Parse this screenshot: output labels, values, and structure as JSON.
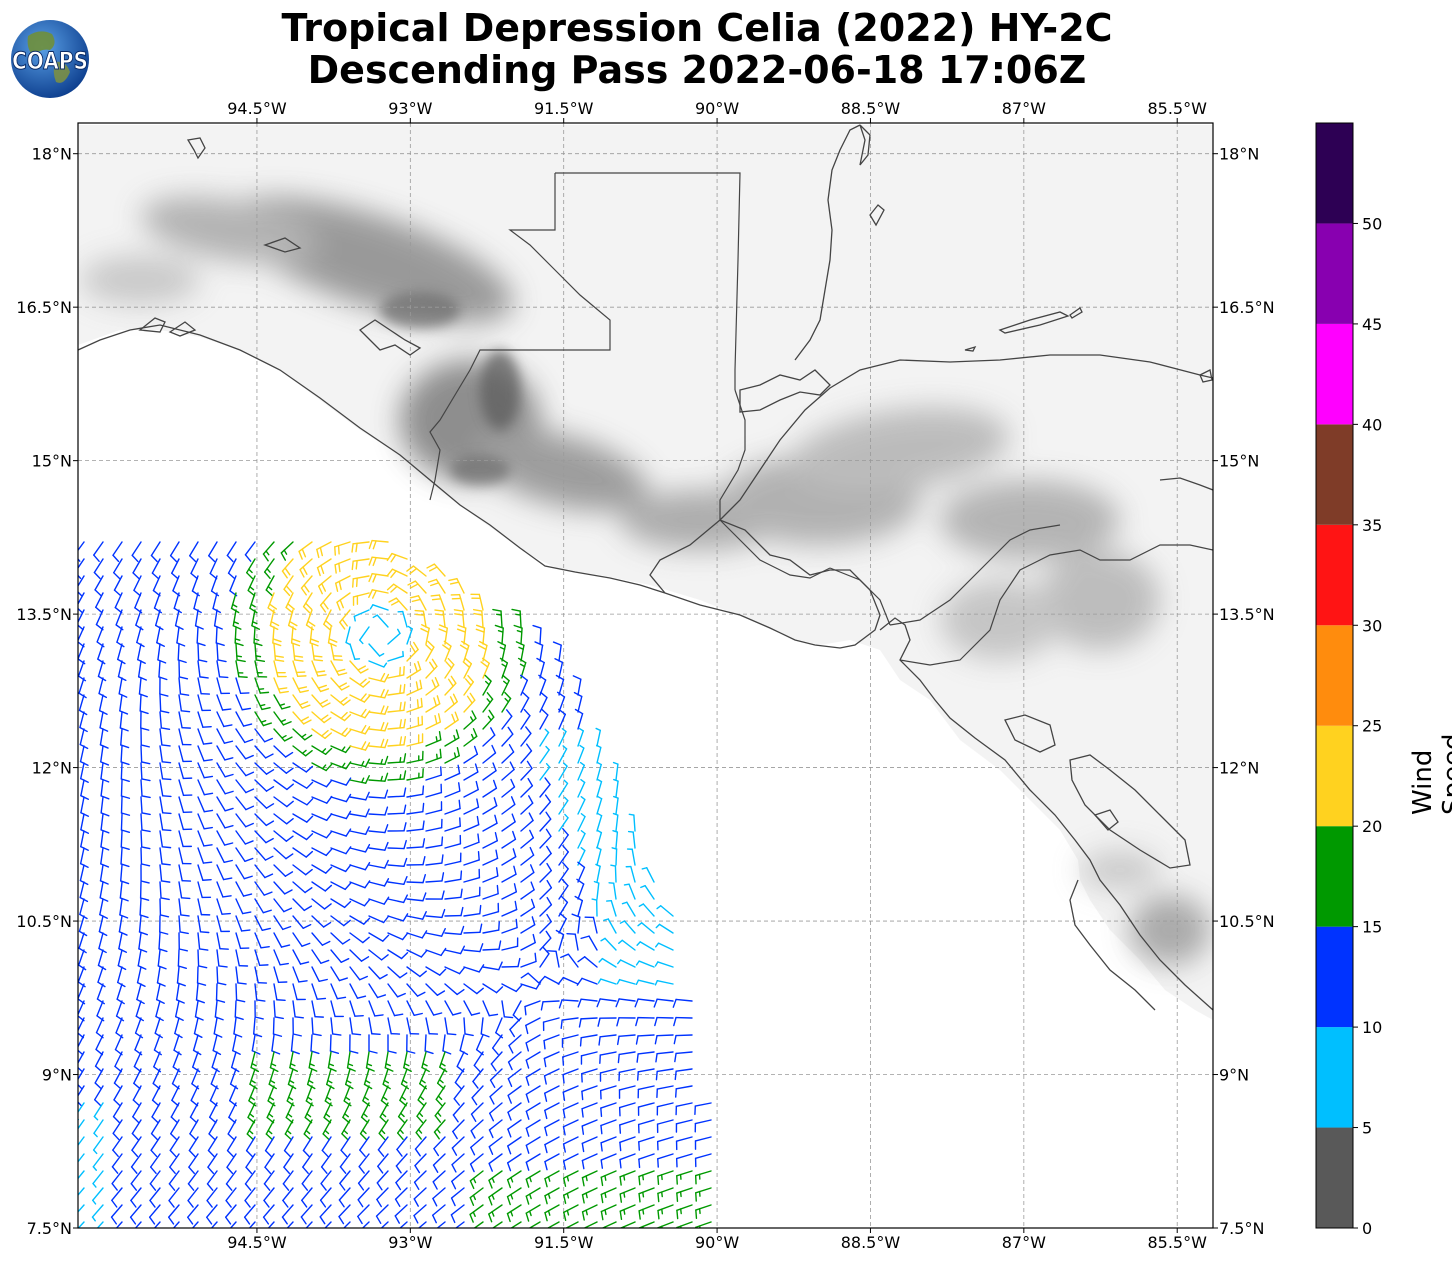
{
  "title": {
    "line1": "Tropical Depression Celia (2022) HY-2C",
    "line2": "Descending Pass 2022-06-18 17:06Z"
  },
  "logo": {
    "text": "COAPS"
  },
  "map": {
    "lon_range": [
      -96.25,
      -85.15
    ],
    "lat_range": [
      7.5,
      18.3
    ],
    "lon_ticks": [
      {
        "value": -94.5,
        "label": "94.5°W"
      },
      {
        "value": -93.0,
        "label": "93°W"
      },
      {
        "value": -91.5,
        "label": "91.5°W"
      },
      {
        "value": -90.0,
        "label": "90°W"
      },
      {
        "value": -88.5,
        "label": "88.5°W"
      },
      {
        "value": -87.0,
        "label": "87°W"
      },
      {
        "value": -85.5,
        "label": "85.5°W"
      }
    ],
    "lat_ticks": [
      {
        "value": 18.0,
        "label": "18°N"
      },
      {
        "value": 16.5,
        "label": "16.5°N"
      },
      {
        "value": 15.0,
        "label": "15°N"
      },
      {
        "value": 13.5,
        "label": "13.5°N"
      },
      {
        "value": 12.0,
        "label": "12°N"
      },
      {
        "value": 10.5,
        "label": "10.5°N"
      },
      {
        "value": 9.0,
        "label": "9°N"
      },
      {
        "value": 7.5,
        "label": "7.5°N"
      }
    ],
    "grid": true,
    "storm_center": {
      "lon": -93.3,
      "lat": 13.3
    },
    "swath_edge_right": [
      [
        -92.2,
        14.3
      ],
      [
        -91.6,
        13.4
      ],
      [
        -90.4,
        10.5
      ],
      [
        -89.9,
        8.0
      ]
    ]
  },
  "colorbar": {
    "label": "Wind Speed (knots)",
    "ticks": [
      "0",
      "5",
      "10",
      "15",
      "20",
      "25",
      "30",
      "35",
      "40",
      "45",
      "50"
    ],
    "bins": [
      {
        "min": 0,
        "max": 5,
        "color": "#595959"
      },
      {
        "min": 5,
        "max": 10,
        "color": "#00bfff"
      },
      {
        "min": 10,
        "max": 15,
        "color": "#0033ff"
      },
      {
        "min": 15,
        "max": 20,
        "color": "#009900"
      },
      {
        "min": 20,
        "max": 25,
        "color": "#ffd21f"
      },
      {
        "min": 25,
        "max": 30,
        "color": "#ff8c0d"
      },
      {
        "min": 30,
        "max": 35,
        "color": "#ff1414"
      },
      {
        "min": 35,
        "max": 40,
        "color": "#7f3c28"
      },
      {
        "min": 40,
        "max": 45,
        "color": "#ff00ff"
      },
      {
        "min": 45,
        "max": 50,
        "color": "#8800b0"
      },
      {
        "min": 50,
        "max": 55,
        "color": "#2d0054"
      }
    ]
  }
}
